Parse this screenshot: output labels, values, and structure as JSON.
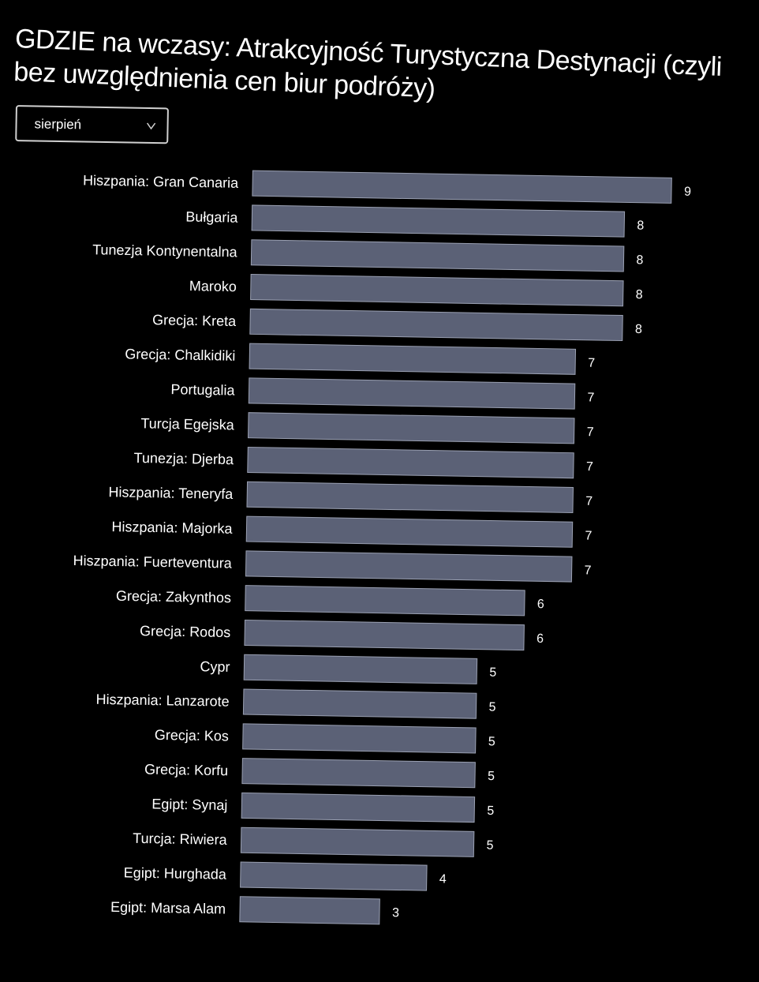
{
  "title": "GDZIE na wczasy: Atrakcyjność Turystyczna Destynacji (czyli bez uwzględnienia cen biur podróży)",
  "filter": {
    "selected": "sierpień",
    "icon": "chevron-down-icon"
  },
  "colors": {
    "background": "#000000",
    "bar": "#5b6176",
    "bar_edge": "#9aa0b2",
    "text": "#ffffff"
  },
  "chart_data": {
    "type": "bar",
    "orientation": "horizontal",
    "title": "GDZIE na wczasy: Atrakcyjność Turystyczna Destynacji (czyli bez uwzględnienia cen biur podróży)",
    "xlabel": "",
    "ylabel": "",
    "xlim": [
      0,
      9
    ],
    "grid": false,
    "data_labels": true,
    "categories": [
      "Hiszpania: Gran Canaria",
      "Bułgaria",
      "Tunezja Kontynentalna",
      "Maroko",
      "Grecja: Kreta",
      "Grecja: Chalkidiki",
      "Portugalia",
      "Turcja Egejska",
      "Tunezja: Djerba",
      "Hiszpania: Teneryfa",
      "Hiszpania: Majorka",
      "Hiszpania: Fuerteventura",
      "Grecja: Zakynthos",
      "Grecja: Rodos",
      "Cypr",
      "Hiszpania: Lanzarote",
      "Grecja: Kos",
      "Grecja: Korfu",
      "Egipt: Synaj",
      "Turcja: Riwiera",
      "Egipt: Hurghada",
      "Egipt: Marsa Alam"
    ],
    "values": [
      9,
      8,
      8,
      8,
      8,
      7,
      7,
      7,
      7,
      7,
      7,
      7,
      6,
      6,
      5,
      5,
      5,
      5,
      5,
      5,
      4,
      3
    ]
  }
}
